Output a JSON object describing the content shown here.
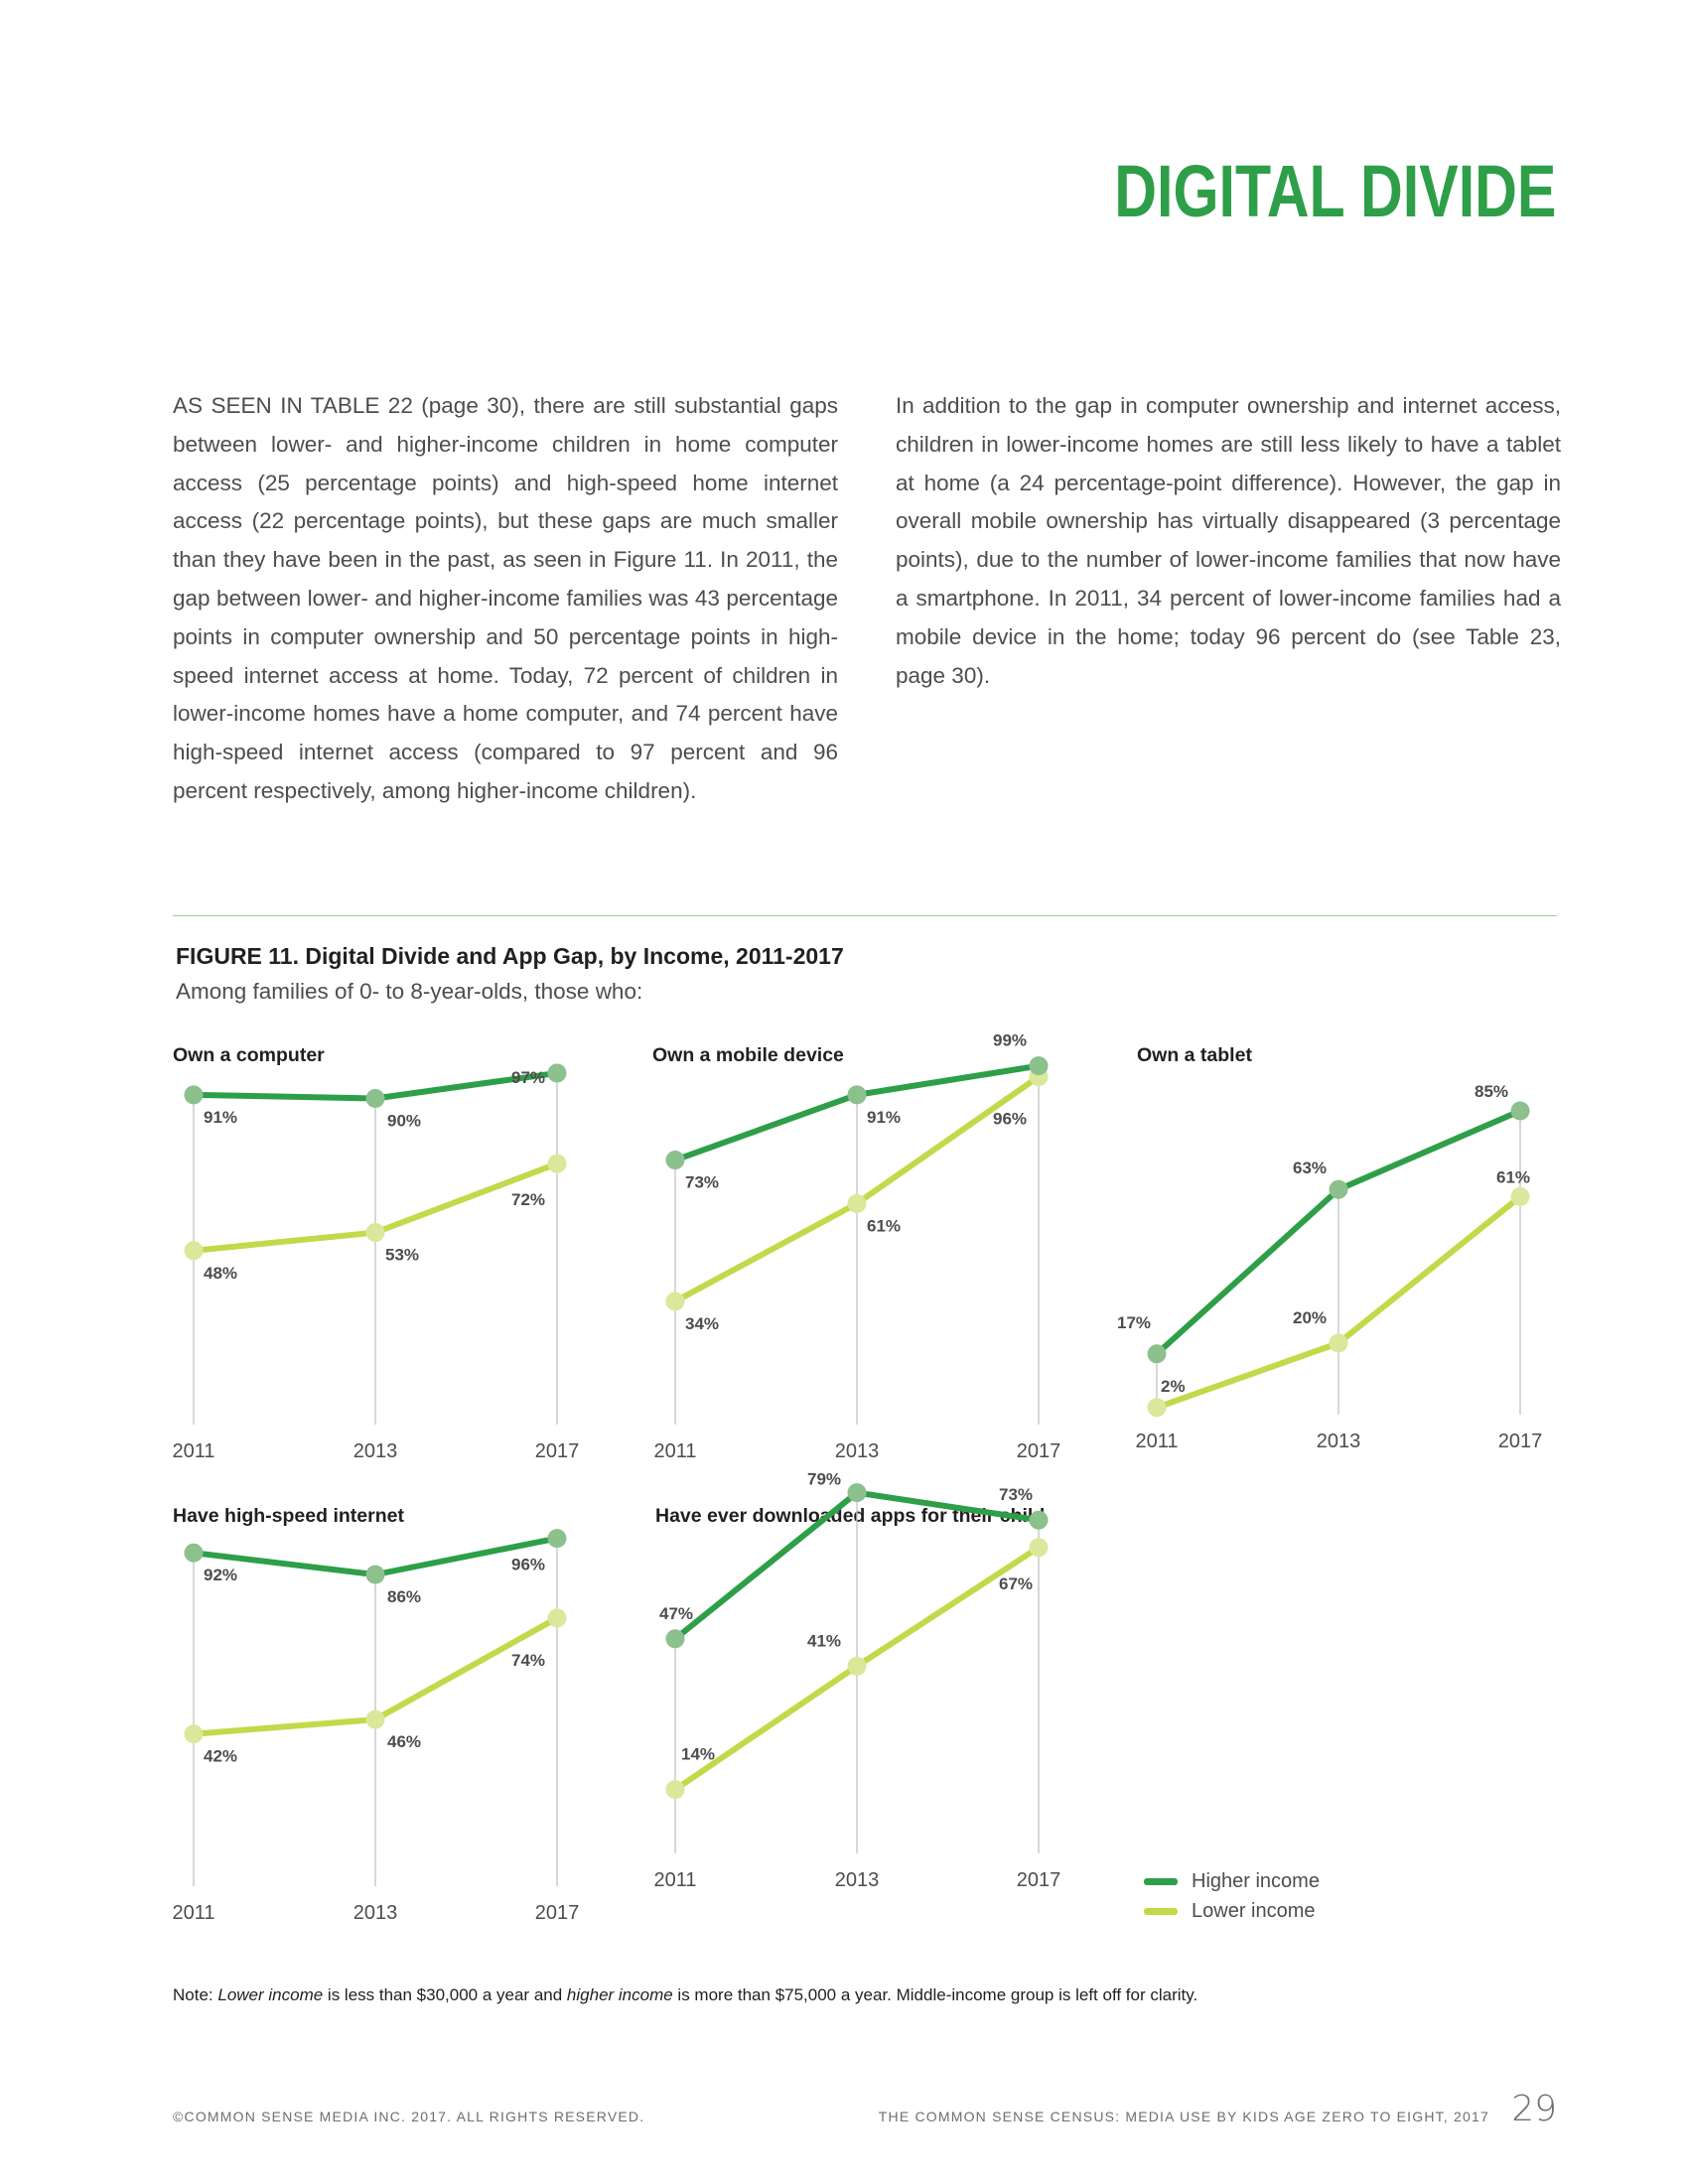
{
  "section_title": "DIGITAL DIVIDE",
  "body_left": "AS SEEN IN TABLE 22 (page 30), there are still substantial gaps between lower- and higher-income children in home computer access (25 percentage points) and high-speed home internet access (22 percentage points), but these gaps are much smaller than they have been in the past, as seen in Figure 11. In 2011, the gap between lower- and higher-income families was 43 percentage points in computer ownership and 50 percentage points in high-speed internet access at home. Today, 72 percent of children in lower-income homes have a home computer, and 74 percent have high-speed internet access (compared to 97 percent and 96 percent respectively, among higher-income children).",
  "body_right": "In addition to the gap in computer ownership and internet access, children in lower-income homes are still less likely to have a tablet at home (a 24 percentage-point difference). However, the gap in overall mobile ownership has virtually disappeared (3 percentage points), due to the number of lower-income families that now have a smartphone. In 2011, 34 percent of lower-income families had a mobile device in the home; today 96 percent do (see Table 23, page 30).",
  "figure": {
    "title": "FIGURE 11. Digital Divide and App Gap, by Income, 2011-2017",
    "subtitle": "Among families of 0- to 8-year-olds, those who:"
  },
  "legend": {
    "higher": "Higher income",
    "lower": "Lower income"
  },
  "colors": {
    "higher_line": "#2e9f48",
    "higher_marker": "#8cc08d",
    "lower_line": "#c2d94a",
    "lower_marker": "#dbe79a",
    "title": "#2e9f48",
    "gridline": "#c8c8c8"
  },
  "chart_data": [
    {
      "type": "line",
      "title": "Own a computer",
      "x": [
        "2011",
        "2013",
        "2017"
      ],
      "ylim": [
        0,
        100
      ],
      "series": [
        {
          "name": "Higher income",
          "values": [
            91,
            90,
            97
          ],
          "labels": [
            "91%",
            "90%",
            "97%"
          ]
        },
        {
          "name": "Lower income",
          "values": [
            48,
            53,
            72
          ],
          "labels": [
            "48%",
            "53%",
            "72%"
          ]
        }
      ]
    },
    {
      "type": "line",
      "title": "Own a mobile device",
      "x": [
        "2011",
        "2013",
        "2017"
      ],
      "ylim": [
        0,
        100
      ],
      "series": [
        {
          "name": "Higher income",
          "values": [
            73,
            91,
            99
          ],
          "labels": [
            "73%",
            "91%",
            "99%"
          ]
        },
        {
          "name": "Lower income",
          "values": [
            34,
            61,
            96
          ],
          "labels": [
            "34%",
            "61%",
            "96%"
          ]
        }
      ]
    },
    {
      "type": "line",
      "title": "Own a tablet",
      "x": [
        "2011",
        "2013",
        "2017"
      ],
      "ylim": [
        0,
        100
      ],
      "series": [
        {
          "name": "Higher income",
          "values": [
            17,
            63,
            85
          ],
          "labels": [
            "17%",
            "63%",
            "85%"
          ]
        },
        {
          "name": "Lower income",
          "values": [
            2,
            20,
            61
          ],
          "labels": [
            "2%",
            "20%",
            "61%"
          ]
        }
      ]
    },
    {
      "type": "line",
      "title": "Have high-speed internet",
      "x": [
        "2011",
        "2013",
        "2017"
      ],
      "ylim": [
        0,
        100
      ],
      "series": [
        {
          "name": "Higher income",
          "values": [
            92,
            86,
            96
          ],
          "labels": [
            "92%",
            "86%",
            "96%"
          ]
        },
        {
          "name": "Lower income",
          "values": [
            42,
            46,
            74
          ],
          "labels": [
            "42%",
            "46%",
            "74%"
          ]
        }
      ]
    },
    {
      "type": "line",
      "title": "Have ever downloaded apps for their child",
      "x": [
        "2011",
        "2013",
        "2017"
      ],
      "ylim": [
        0,
        100
      ],
      "series": [
        {
          "name": "Higher income",
          "values": [
            47,
            79,
            73
          ],
          "labels": [
            "47%",
            "79%",
            "73%"
          ]
        },
        {
          "name": "Lower income",
          "values": [
            14,
            41,
            67
          ],
          "labels": [
            "14%",
            "41%",
            "67%"
          ]
        }
      ]
    }
  ],
  "note": {
    "prefix": "Note: ",
    "lower_term": "Lower income",
    "mid1": " is less than $30,000 a year and ",
    "higher_term": "higher income",
    "rest": " is more than $75,000 a year. Middle-income group is left off for clarity."
  },
  "footer": {
    "copyright": "©COMMON SENSE MEDIA INC. 2017. ALL RIGHTS RESERVED.",
    "publication": "THE COMMON SENSE CENSUS: MEDIA USE BY KIDS AGE ZERO TO EIGHT, 2017",
    "page_number": "29"
  }
}
